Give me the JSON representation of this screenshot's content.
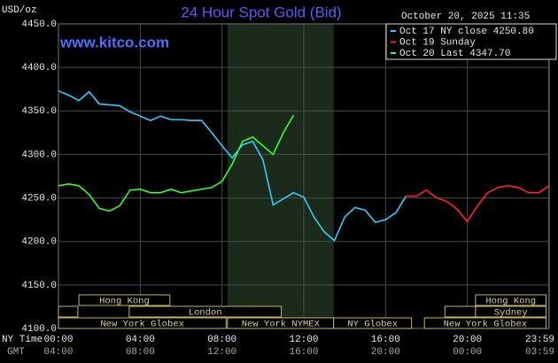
{
  "chart_data": {
    "type": "line",
    "title": "24 Hour Spot Gold (Bid)",
    "unit_label": "USD/oz",
    "timestamp": "October 20, 2025 11:35",
    "watermark": "www.kitco.com",
    "x_axis_label": "NY Time",
    "x2_axis_label": "GMT",
    "xlim": [
      0,
      24
    ],
    "xticks": [
      {
        "value": 0,
        "label": "00:00"
      },
      {
        "value": 4,
        "label": "04:00"
      },
      {
        "value": 8,
        "label": "08:00"
      },
      {
        "value": 12,
        "label": "12:00"
      },
      {
        "value": 16,
        "label": "16:00"
      },
      {
        "value": 20,
        "label": "20:00"
      },
      {
        "value": 23.98,
        "label": "23:59"
      }
    ],
    "x2ticks": [
      "04:00",
      "08:00",
      "12:00",
      "16:00",
      "20:00",
      "00:00",
      "03:59"
    ],
    "ylim": [
      4100,
      4450
    ],
    "yticks": [
      {
        "value": 4100,
        "label": "4100.0"
      },
      {
        "value": 4150,
        "label": "4150.0"
      },
      {
        "value": 4200,
        "label": "4200.0"
      },
      {
        "value": 4250,
        "label": "4250.0"
      },
      {
        "value": 4300,
        "label": "4300.0"
      },
      {
        "value": 4350,
        "label": "4350.0"
      },
      {
        "value": 4400,
        "label": "4400.0"
      },
      {
        "value": 4450,
        "label": "4450.0"
      }
    ],
    "grid": true,
    "highlight": [
      8.27,
      13.46
    ],
    "series": [
      {
        "name": "Oct 17 NY close 4250.80",
        "color": "#33ccff",
        "x": [
          0,
          0.5,
          1,
          1.5,
          2,
          2.5,
          3,
          3.5,
          4,
          4.5,
          5,
          5.5,
          6,
          6.5,
          7,
          7.5,
          8,
          8.5,
          9,
          9.5,
          10,
          10.5,
          11,
          11.5,
          12,
          12.5,
          13,
          13.5,
          14,
          14.5,
          15,
          15.5,
          16,
          16.5,
          17
        ],
        "values": [
          4373,
          4368,
          4362,
          4372,
          4358,
          4357,
          4356,
          4349,
          4344,
          4339,
          4344,
          4340,
          4340,
          4339,
          4339,
          4325,
          4310,
          4296,
          4311,
          4315,
          4294,
          4242,
          4249,
          4256,
          4251,
          4228,
          4211,
          4201,
          4228,
          4239,
          4236,
          4222,
          4225,
          4233,
          4252
        ]
      },
      {
        "name": "Oct 19 Sunday",
        "color": "#ff2222",
        "x": [
          17,
          17.5,
          18,
          18.5,
          19,
          19.5,
          20,
          20.5,
          21,
          21.5,
          22,
          22.5,
          23,
          23.5,
          24
        ],
        "values": [
          4252,
          4252,
          4259,
          4250,
          4246,
          4237,
          4223,
          4241,
          4256,
          4262,
          4264,
          4262,
          4256,
          4256,
          4264
        ]
      },
      {
        "name": "Oct 20 Last 4347.70",
        "color": "#33ff33",
        "x": [
          0,
          0.5,
          1,
          1.5,
          2,
          2.5,
          3,
          3.5,
          4,
          4.5,
          5,
          5.5,
          6,
          6.5,
          7,
          7.5,
          8,
          8.5,
          9,
          9.5,
          10,
          10.5,
          11,
          11.5
        ],
        "values": [
          4264,
          4266,
          4264,
          4254,
          4238,
          4235,
          4241,
          4259,
          4260,
          4256,
          4256,
          4260,
          4256,
          4258,
          4260,
          4262,
          4269,
          4289,
          4315,
          4320,
          4310,
          4300,
          4325,
          4345
        ]
      }
    ],
    "sessions": [
      {
        "label": "Hong Kong",
        "row": 0,
        "start": 1.0,
        "end": 5.45
      },
      {
        "label": "London",
        "row": 1,
        "start": 3.46,
        "end": 10.9
      },
      {
        "label": "New York Globex",
        "row": 2,
        "start": 0,
        "end": 8.2
      },
      {
        "label": "New York NYMEX",
        "row": 2,
        "start": 8.27,
        "end": 13.46
      },
      {
        "label": "NY Globex",
        "row": 2,
        "start": 13.46,
        "end": 17.27
      },
      {
        "label": "Hong Kong",
        "row": 0,
        "start": 20.4,
        "end": 23.85
      },
      {
        "label": "Sydney",
        "row": 1,
        "start": 20.4,
        "end": 23.85
      },
      {
        "label": "New York Globex",
        "row": 2,
        "start": 17.9,
        "end": 23.85
      }
    ]
  }
}
